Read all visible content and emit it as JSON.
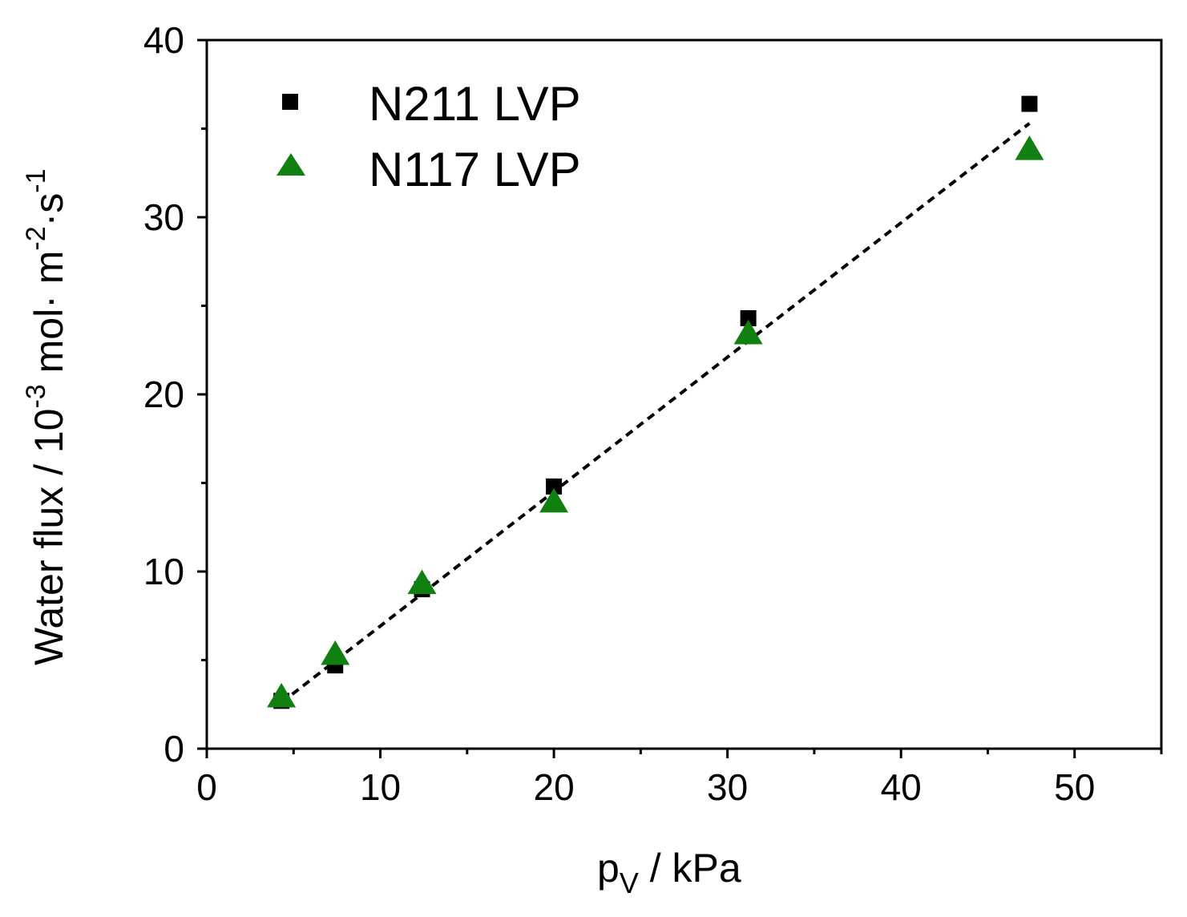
{
  "chart_data": {
    "type": "scatter",
    "xlabel": {
      "main": "p",
      "sub": "V",
      "rest": " / kPa"
    },
    "ylabel": {
      "a": "Water flux /  10",
      "b": "-3",
      "c": " mol· m",
      "d": "-2",
      "e": "·s",
      "f": "-1"
    },
    "xlim": [
      0,
      55
    ],
    "ylim": [
      0,
      40
    ],
    "x_ticks": [
      0,
      10,
      20,
      30,
      40,
      50
    ],
    "y_ticks": [
      0,
      10,
      20,
      30,
      40
    ],
    "x_tick_labels": [
      "0",
      "10",
      "20",
      "30",
      "40",
      "50"
    ],
    "y_tick_labels": [
      "0",
      "10",
      "20",
      "30",
      "40"
    ],
    "x_minor_ticks": [
      5,
      15,
      25,
      35,
      45,
      55
    ],
    "y_minor_ticks": [
      5,
      15,
      25,
      35
    ],
    "series": [
      {
        "name": "N211 LVP",
        "marker": "square",
        "color": "#000000",
        "x": [
          4.3,
          7.4,
          12.4,
          20.0,
          31.2,
          47.4
        ],
        "y": [
          2.7,
          4.7,
          9.0,
          14.8,
          24.3,
          36.4
        ]
      },
      {
        "name": "N117 LVP",
        "marker": "triangle",
        "color": "#108010",
        "x": [
          4.3,
          7.4,
          12.4,
          20.0,
          31.2,
          47.4
        ],
        "y": [
          2.9,
          5.3,
          9.3,
          13.9,
          23.4,
          33.8
        ]
      }
    ],
    "fit_line": {
      "style": "dashed",
      "color": "#000000",
      "x": [
        4.3,
        47.4
      ],
      "y": [
        2.6,
        35.3
      ]
    },
    "legend": {
      "position": "top-left",
      "entries": [
        "N211 LVP",
        "N117 LVP"
      ]
    }
  }
}
